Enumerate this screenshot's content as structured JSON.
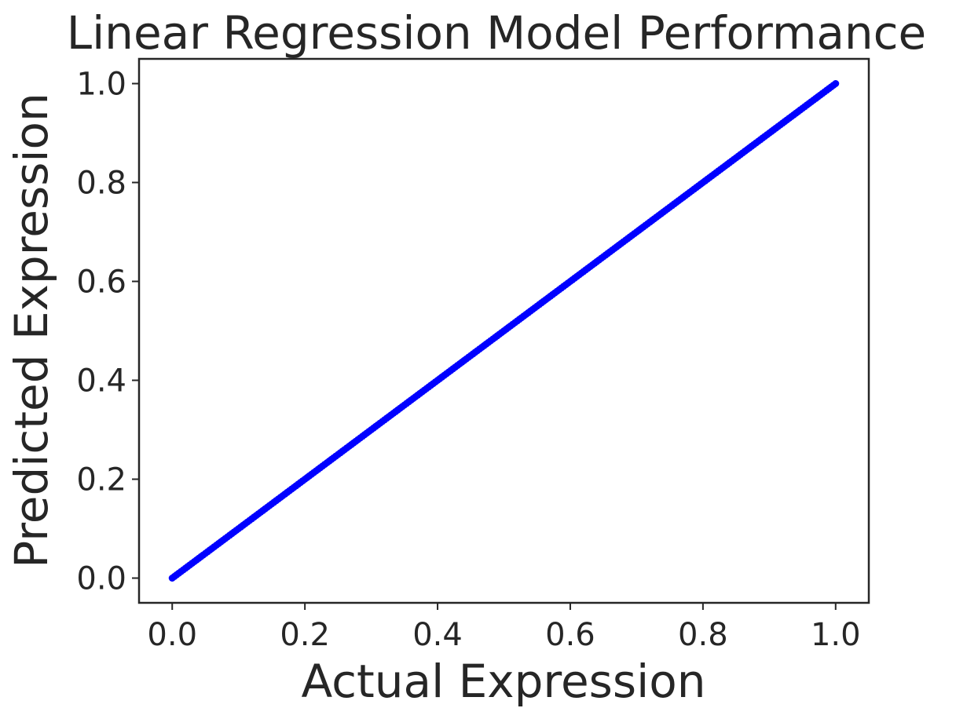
{
  "chart_data": {
    "type": "scatter",
    "title": "Linear Regression Model Performance",
    "xlabel": "Actual Expression",
    "ylabel": "Predicted Expression",
    "xlim": [
      -0.05,
      1.05
    ],
    "ylim": [
      -0.05,
      1.05
    ],
    "xticks": [
      "0.0",
      "0.2",
      "0.4",
      "0.6",
      "0.8",
      "1.0"
    ],
    "yticks": [
      "0.0",
      "0.2",
      "0.4",
      "0.6",
      "0.8",
      "1.0"
    ],
    "grid": false,
    "marker_color": "#0000ff",
    "series": [
      {
        "x": [
          0.0,
          0.02,
          0.04,
          0.06,
          0.08,
          0.1,
          0.12,
          0.14,
          0.16,
          0.18,
          0.2,
          0.22,
          0.24,
          0.26,
          0.28,
          0.3,
          0.32,
          0.34,
          0.36,
          0.38,
          0.4,
          0.42,
          0.44,
          0.46,
          0.48,
          0.5,
          0.52,
          0.54,
          0.56,
          0.58,
          0.6,
          0.62,
          0.64,
          0.66,
          0.68,
          0.7,
          0.72,
          0.74,
          0.76,
          0.78,
          0.8,
          0.82,
          0.84,
          0.86,
          0.88,
          0.9,
          0.92,
          0.94,
          0.96,
          0.98,
          1.0
        ],
        "y": [
          0.0,
          0.02,
          0.04,
          0.06,
          0.08,
          0.1,
          0.12,
          0.14,
          0.16,
          0.18,
          0.2,
          0.22,
          0.24,
          0.26,
          0.28,
          0.3,
          0.32,
          0.34,
          0.36,
          0.38,
          0.4,
          0.42,
          0.44,
          0.46,
          0.48,
          0.5,
          0.52,
          0.54,
          0.56,
          0.58,
          0.6,
          0.62,
          0.64,
          0.66,
          0.68,
          0.7,
          0.72,
          0.74,
          0.76,
          0.78,
          0.8,
          0.82,
          0.84,
          0.86,
          0.88,
          0.9,
          0.92,
          0.94,
          0.96,
          0.98,
          1.0
        ]
      }
    ]
  }
}
